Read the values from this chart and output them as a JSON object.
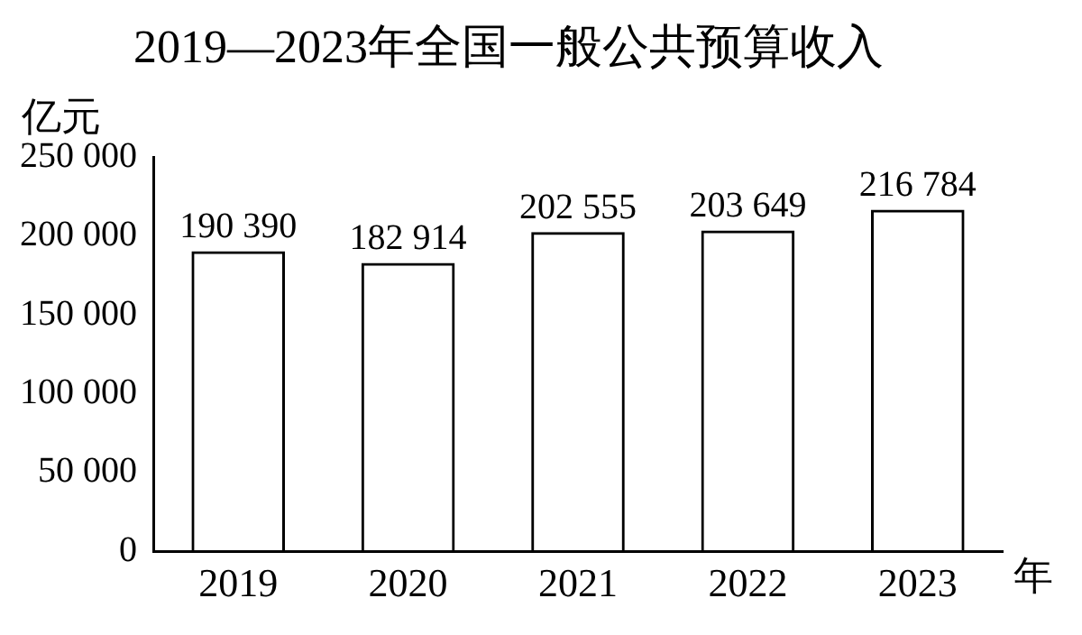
{
  "chart_data": {
    "type": "bar",
    "title": "2019—2023年全国一般公共预算收入",
    "ylabel": "亿元",
    "xlabel": "年",
    "categories": [
      "2019",
      "2020",
      "2021",
      "2022",
      "2023"
    ],
    "values": [
      190390,
      182914,
      202555,
      203649,
      216784
    ],
    "value_labels": [
      "190 390",
      "182 914",
      "202 555",
      "203 649",
      "216 784"
    ],
    "color": "#000000",
    "ylim": [
      0,
      250000
    ],
    "yticks": [
      {
        "value": 0,
        "label": "0"
      },
      {
        "value": 50000,
        "label": "50 000"
      },
      {
        "value": 100000,
        "label": "100 000"
      },
      {
        "value": 150000,
        "label": "150 000"
      },
      {
        "value": 200000,
        "label": "200 000"
      },
      {
        "value": 250000,
        "label": "250 000"
      }
    ],
    "grid": false,
    "legend": false
  }
}
